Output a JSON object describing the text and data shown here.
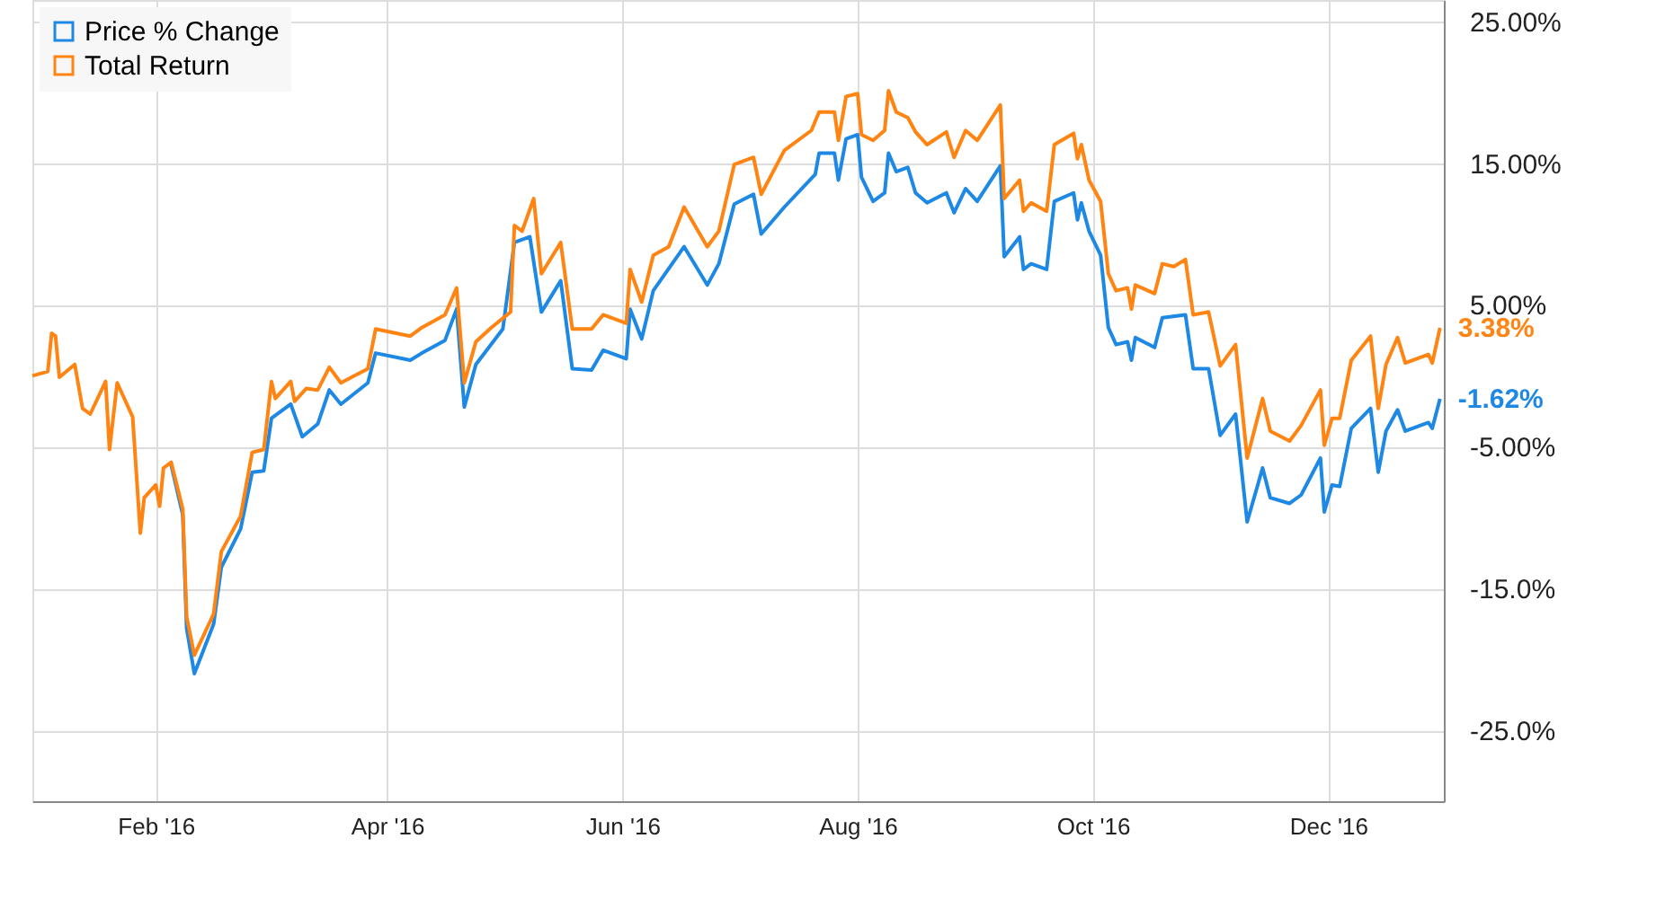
{
  "chart_data": {
    "type": "line",
    "xlim": [
      "2015-12-31",
      "2016-12-31"
    ],
    "xticks": [
      {
        "value": "2016-02-01",
        "label": "Feb '16"
      },
      {
        "value": "2016-04-01",
        "label": "Apr '16"
      },
      {
        "value": "2016-06-01",
        "label": "Jun '16"
      },
      {
        "value": "2016-08-01",
        "label": "Aug '16"
      },
      {
        "value": "2016-10-01",
        "label": "Oct '16"
      },
      {
        "value": "2016-12-01",
        "label": "Dec '16"
      }
    ],
    "ylim": [
      -30,
      26.5
    ],
    "yticks": [
      {
        "value": 25,
        "label": "25.00%"
      },
      {
        "value": 15,
        "label": "15.00%"
      },
      {
        "value": 5,
        "label": "5.00%"
      },
      {
        "value": -5,
        "label": "-5.00%"
      },
      {
        "value": -15,
        "label": "-15.0%"
      },
      {
        "value": -25,
        "label": "-25.0%"
      }
    ],
    "grid": true,
    "legend": "top left",
    "marker": "none",
    "line_style": "solid",
    "series": [
      {
        "name": "Price % Change",
        "color": "#1e88e5",
        "x": [
          "2016-02-05",
          "2016-02-08",
          "2016-02-09",
          "2016-02-11",
          "2016-02-16",
          "2016-02-18",
          "2016-02-23",
          "2016-02-26",
          "2016-02-29",
          "2016-03-02",
          "2016-03-07",
          "2016-03-10",
          "2016-03-14",
          "2016-03-17",
          "2016-03-20",
          "2016-03-27",
          "2016-03-29",
          "2016-04-07",
          "2016-04-10",
          "2016-04-16",
          "2016-04-19",
          "2016-04-21",
          "2016-04-24",
          "2016-05-01",
          "2016-05-04",
          "2016-05-08",
          "2016-05-11",
          "2016-05-16",
          "2016-05-19",
          "2016-05-24",
          "2016-05-27",
          "2016-06-02",
          "2016-06-03",
          "2016-06-06",
          "2016-06-09",
          "2016-06-17",
          "2016-06-23",
          "2016-06-26",
          "2016-06-30",
          "2016-07-05",
          "2016-07-07",
          "2016-07-13",
          "2016-07-21",
          "2016-07-22",
          "2016-07-26",
          "2016-07-27",
          "2016-07-29",
          "2016-08-01",
          "2016-08-02",
          "2016-08-05",
          "2016-08-08",
          "2016-08-09",
          "2016-08-11",
          "2016-08-14",
          "2016-08-16",
          "2016-08-19",
          "2016-08-24",
          "2016-08-26",
          "2016-08-29",
          "2016-09-01",
          "2016-09-07",
          "2016-09-08",
          "2016-09-12",
          "2016-09-13",
          "2016-09-15",
          "2016-09-19",
          "2016-09-21",
          "2016-09-26",
          "2016-09-27",
          "2016-09-28",
          "2016-09-30",
          "2016-10-03",
          "2016-10-05",
          "2016-10-07",
          "2016-10-10",
          "2016-10-11",
          "2016-10-12",
          "2016-10-17",
          "2016-10-19",
          "2016-10-25",
          "2016-10-27",
          "2016-10-31",
          "2016-11-03",
          "2016-11-07",
          "2016-11-10",
          "2016-11-14",
          "2016-11-16",
          "2016-11-21",
          "2016-11-24",
          "2016-11-29",
          "2016-11-30",
          "2016-12-02",
          "2016-12-04",
          "2016-12-07",
          "2016-12-12",
          "2016-12-14",
          "2016-12-16",
          "2016-12-19",
          "2016-12-21",
          "2016-12-27",
          "2016-12-28",
          "2016-12-30"
        ],
        "values": [
          -6.3,
          -9.8,
          -17.8,
          -21.0,
          -17.5,
          -13.5,
          -10.8,
          -6.8,
          -6.7,
          -3.0,
          -2.0,
          -4.3,
          -3.4,
          -1.0,
          -2.0,
          -0.5,
          1.6,
          1.1,
          1.6,
          2.5,
          4.7,
          -2.2,
          0.8,
          3.3,
          9.4,
          9.8,
          4.5,
          6.7,
          0.5,
          0.4,
          1.8,
          1.2,
          4.7,
          2.6,
          6.0,
          9.1,
          6.4,
          7.9,
          12.1,
          12.8,
          10.0,
          11.9,
          14.2,
          15.7,
          15.7,
          13.8,
          16.7,
          17.0,
          14.0,
          12.3,
          12.9,
          15.7,
          14.4,
          14.7,
          12.9,
          12.2,
          12.9,
          11.5,
          13.2,
          12.3,
          14.8,
          8.4,
          9.8,
          7.5,
          7.9,
          7.5,
          12.3,
          12.9,
          11.0,
          12.2,
          10.2,
          8.5,
          3.4,
          2.2,
          2.4,
          1.1,
          2.7,
          2.0,
          4.1,
          4.3,
          0.5,
          0.5,
          -4.2,
          -2.7,
          -10.3,
          -6.5,
          -8.6,
          -9.0,
          -8.4,
          -5.8,
          -9.6,
          -7.7,
          -7.8,
          -3.7,
          -2.3,
          -6.8,
          -3.9,
          -2.4,
          -3.9,
          -3.3,
          -3.7,
          -1.62
        ]
      },
      {
        "name": "Total Return",
        "color": "#ff8412",
        "x": [
          "2015-12-31",
          "2016-01-04",
          "2016-01-05",
          "2016-01-06",
          "2016-01-07",
          "2016-01-11",
          "2016-01-13",
          "2016-01-15",
          "2016-01-19",
          "2016-01-20",
          "2016-01-22",
          "2016-01-26",
          "2016-01-28",
          "2016-01-29",
          "2016-02-01",
          "2016-02-02",
          "2016-02-03",
          "2016-02-05",
          "2016-02-08",
          "2016-02-09",
          "2016-02-11",
          "2016-02-16",
          "2016-02-18",
          "2016-02-23",
          "2016-02-26",
          "2016-02-29",
          "2016-03-02",
          "2016-03-03",
          "2016-03-07",
          "2016-03-08",
          "2016-03-11",
          "2016-03-14",
          "2016-03-17",
          "2016-03-20",
          "2016-03-27",
          "2016-03-29",
          "2016-04-07",
          "2016-04-10",
          "2016-04-16",
          "2016-04-19",
          "2016-04-21",
          "2016-04-24",
          "2016-04-28",
          "2016-05-03",
          "2016-05-04",
          "2016-05-06",
          "2016-05-09",
          "2016-05-11",
          "2016-05-16",
          "2016-05-19",
          "2016-05-24",
          "2016-05-27",
          "2016-06-02",
          "2016-06-03",
          "2016-06-06",
          "2016-06-09",
          "2016-06-13",
          "2016-06-17",
          "2016-06-23",
          "2016-06-26",
          "2016-06-30",
          "2016-07-05",
          "2016-07-07",
          "2016-07-13",
          "2016-07-20",
          "2016-07-22",
          "2016-07-26",
          "2016-07-27",
          "2016-07-29",
          "2016-08-01",
          "2016-08-02",
          "2016-08-05",
          "2016-08-08",
          "2016-08-09",
          "2016-08-11",
          "2016-08-14",
          "2016-08-16",
          "2016-08-19",
          "2016-08-24",
          "2016-08-26",
          "2016-08-29",
          "2016-09-01",
          "2016-09-07",
          "2016-09-08",
          "2016-09-12",
          "2016-09-13",
          "2016-09-15",
          "2016-09-19",
          "2016-09-21",
          "2016-09-26",
          "2016-09-27",
          "2016-09-28",
          "2016-09-30",
          "2016-10-03",
          "2016-10-05",
          "2016-10-07",
          "2016-10-10",
          "2016-10-11",
          "2016-10-12",
          "2016-10-17",
          "2016-10-19",
          "2016-10-22",
          "2016-10-25",
          "2016-10-27",
          "2016-10-31",
          "2016-11-03",
          "2016-11-07",
          "2016-11-10",
          "2016-11-14",
          "2016-11-16",
          "2016-11-21",
          "2016-11-24",
          "2016-11-29",
          "2016-11-30",
          "2016-12-02",
          "2016-12-04",
          "2016-12-07",
          "2016-12-12",
          "2016-12-14",
          "2016-12-16",
          "2016-12-19",
          "2016-12-21",
          "2016-12-27",
          "2016-12-28",
          "2016-12-30"
        ],
        "values": [
          0,
          0.3,
          3.0,
          2.8,
          -0.1,
          0.8,
          -2.3,
          -2.7,
          -0.4,
          -5.2,
          -0.5,
          -2.9,
          -11.1,
          -8.6,
          -7.7,
          -9.2,
          -6.5,
          -6.1,
          -9.4,
          -17.0,
          -19.7,
          -16.8,
          -12.4,
          -9.9,
          -5.4,
          -5.2,
          -0.4,
          -1.6,
          -0.4,
          -1.8,
          -0.9,
          -1.0,
          0.6,
          -0.5,
          0.5,
          3.3,
          2.8,
          3.4,
          4.3,
          6.2,
          -0.5,
          2.4,
          3.4,
          4.5,
          10.6,
          10.2,
          12.5,
          7.2,
          9.4,
          3.3,
          3.3,
          4.3,
          3.7,
          7.5,
          5.2,
          8.5,
          9.1,
          11.9,
          9.1,
          10.2,
          14.9,
          15.4,
          12.8,
          15.9,
          17.3,
          18.6,
          18.6,
          16.6,
          19.7,
          19.9,
          17.0,
          16.6,
          17.3,
          20.1,
          18.6,
          18.2,
          17.2,
          16.3,
          17.2,
          15.4,
          17.3,
          16.6,
          19.1,
          12.5,
          13.8,
          11.6,
          12.2,
          11.6,
          16.3,
          17.1,
          15.3,
          16.3,
          13.8,
          12.3,
          7.2,
          6.0,
          6.2,
          4.7,
          6.4,
          5.8,
          7.9,
          7.7,
          8.2,
          4.3,
          4.5,
          0.7,
          2.2,
          -5.8,
          -1.6,
          -3.9,
          -4.6,
          -3.5,
          -1.0,
          -4.9,
          -3.0,
          -3.0,
          1.1,
          2.8,
          -2.3,
          0.8,
          2.7,
          0.9,
          1.5,
          0.9,
          3.38
        ]
      }
    ],
    "annotations": [
      {
        "text": "-1.62%",
        "x": "2016-12-30",
        "y": -1.62
      },
      {
        "text": "3.38%",
        "x": "2016-12-30",
        "y": 3.38
      }
    ]
  }
}
